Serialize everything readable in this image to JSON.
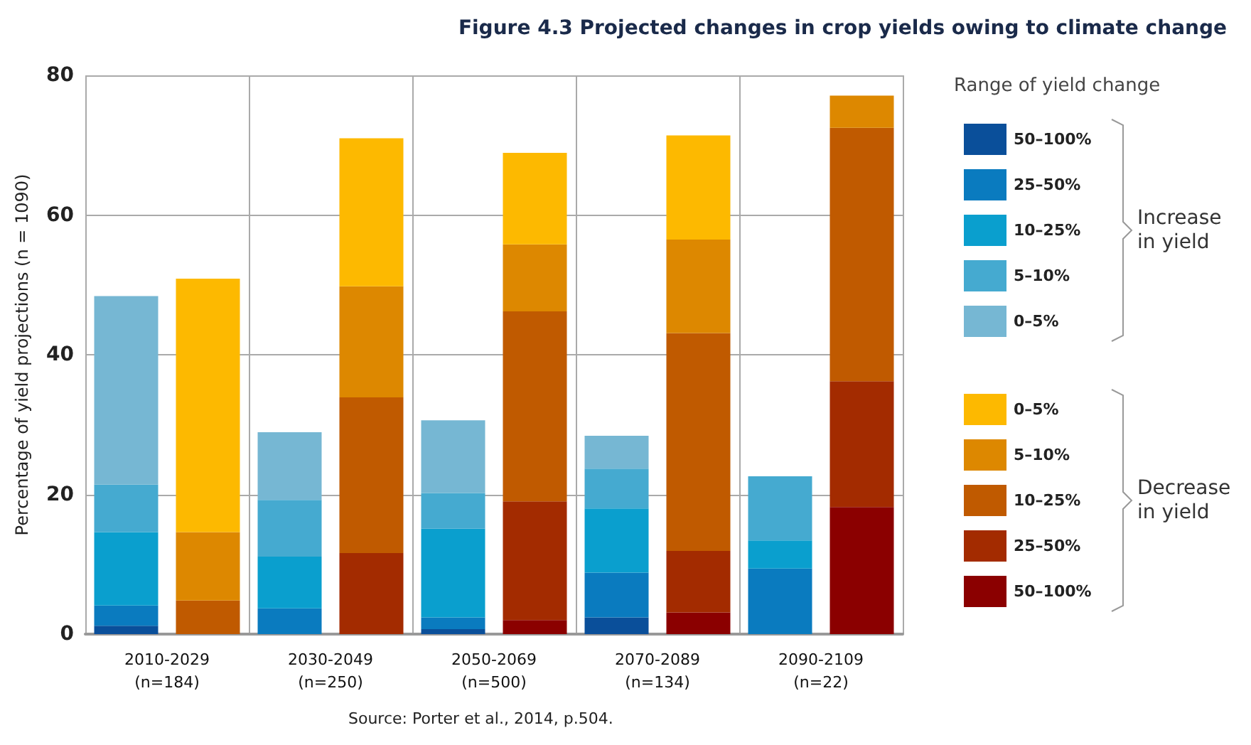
{
  "chart_data": {
    "type": "bar",
    "title": "Figure 4.3 Projected changes in crop yields owing to climate change",
    "ylabel": "Percentage of yield projections (n = 1090)",
    "legend_title": "Range of yield change",
    "annotations": [
      "Increase in yield",
      "Decrease in yield",
      "Source: Porter et al., 2014, p.504."
    ],
    "categories": [
      "2010-2029\n(n=184)",
      null,
      "2030-2049\n(n=250)",
      null,
      "2050-2069\n(n=500)",
      null,
      "2070-2089\n(n=134)",
      null,
      "2090-2109\n(n=22)",
      null
    ],
    "stacked": true,
    "ylim": [
      0,
      80
    ],
    "yticks": [
      0,
      20,
      40,
      60,
      80
    ],
    "grid": true,
    "legend": "right",
    "series": [
      {
        "name": "50–100%",
        "color": "#0a4f9a",
        "values": [
          1.2,
          null,
          0,
          null,
          0.7,
          null,
          2.4,
          null,
          0,
          null
        ]
      },
      {
        "name": "25–50%",
        "color": "#0a7bbf",
        "values": [
          2.9,
          null,
          3.7,
          null,
          1.7,
          null,
          6.4,
          null,
          9.4,
          null
        ]
      },
      {
        "name": "10–25%",
        "color": "#0a9fce",
        "values": [
          10.5,
          null,
          7.4,
          null,
          12.7,
          null,
          9.2,
          null,
          4.0,
          null
        ]
      },
      {
        "name": "5–10%",
        "color": "#45aad0",
        "values": [
          6.8,
          null,
          8.1,
          null,
          5.1,
          null,
          5.7,
          null,
          9.2,
          null
        ]
      },
      {
        "name": "0–5%",
        "color": "#76b7d3",
        "values": [
          27.0,
          null,
          9.7,
          null,
          10.4,
          null,
          4.7,
          null,
          0,
          null
        ]
      },
      {
        "name": "50–100%",
        "color": "#8b0000",
        "values": [
          null,
          0,
          null,
          0,
          null,
          2.0,
          null,
          3.1,
          null,
          18.2
        ]
      },
      {
        "name": "25–50%",
        "color": "#a32b00",
        "values": [
          null,
          0,
          null,
          11.6,
          null,
          17.0,
          null,
          8.8,
          null,
          18.0
        ]
      },
      {
        "name": "10–25%",
        "color": "#c05a00",
        "values": [
          null,
          4.8,
          null,
          22.3,
          null,
          27.2,
          null,
          31.2,
          null,
          36.3
        ]
      },
      {
        "name": "5–10%",
        "color": "#dd8800",
        "values": [
          null,
          9.8,
          null,
          15.9,
          null,
          9.6,
          null,
          13.4,
          null,
          4.6
        ]
      },
      {
        "name": "0–5%",
        "color": "#fdb900",
        "values": [
          null,
          36.3,
          null,
          21.2,
          null,
          13.1,
          null,
          14.9,
          null,
          0
        ]
      }
    ]
  }
}
